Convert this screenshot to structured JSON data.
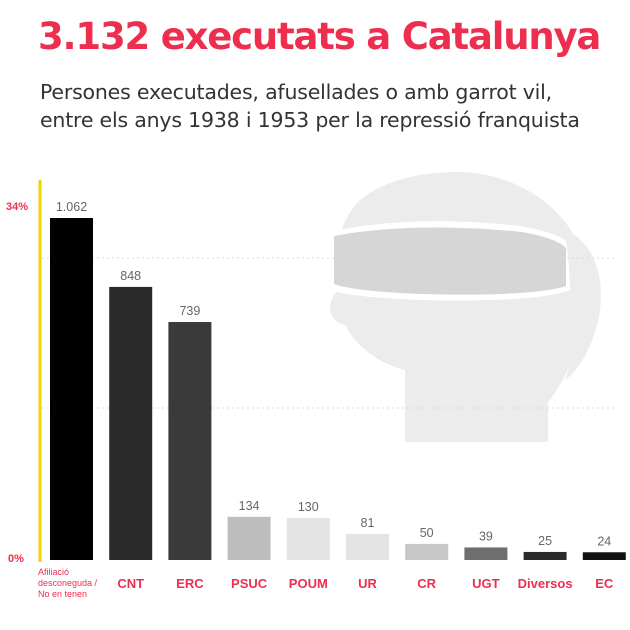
{
  "title": "3.132 executats a Catalunya",
  "subtitle": [
    "Persones executades, afusellades o amb garrot vil,",
    "entre els anys 1938 i 1953 per la repressió franquista"
  ],
  "colors": {
    "accent": "#ee2e4f",
    "axis": "#f2d200",
    "silhouette": "#ececec",
    "bars": [
      "#000000",
      "#2b2b2b",
      "#3a3a3a",
      "#bdbdbd",
      "#e3e3e3",
      "#e3e3e3",
      "#c7c7c7",
      "#6e6e6e",
      "#2b2b2b",
      "#111111"
    ]
  },
  "chart_data": {
    "type": "bar",
    "categories": [
      "Afiliació desconeguda / No en tenen",
      "CNT",
      "ERC",
      "PSUC",
      "POUM",
      "UR",
      "CR",
      "UGT",
      "Diversos",
      "EC"
    ],
    "category_lines": [
      [
        "Afiliació",
        "desconeguda /",
        "No en tenen"
      ],
      [
        "CNT"
      ],
      [
        "ERC"
      ],
      [
        "PSUC"
      ],
      [
        "POUM"
      ],
      [
        "UR"
      ],
      [
        "CR"
      ],
      [
        "UGT"
      ],
      [
        "Diversos"
      ],
      [
        "EC"
      ]
    ],
    "values": [
      1062,
      848,
      739,
      134,
      130,
      81,
      50,
      39,
      25,
      24
    ],
    "value_labels": [
      "1.062",
      "848",
      "739",
      "134",
      "130",
      "81",
      "50",
      "39",
      "25",
      "24"
    ],
    "y_ticks": [
      "34%",
      "0%"
    ],
    "ylim": [
      0,
      1062
    ],
    "grid": true,
    "background_icon": "blindfolded-head-silhouette-icon"
  }
}
